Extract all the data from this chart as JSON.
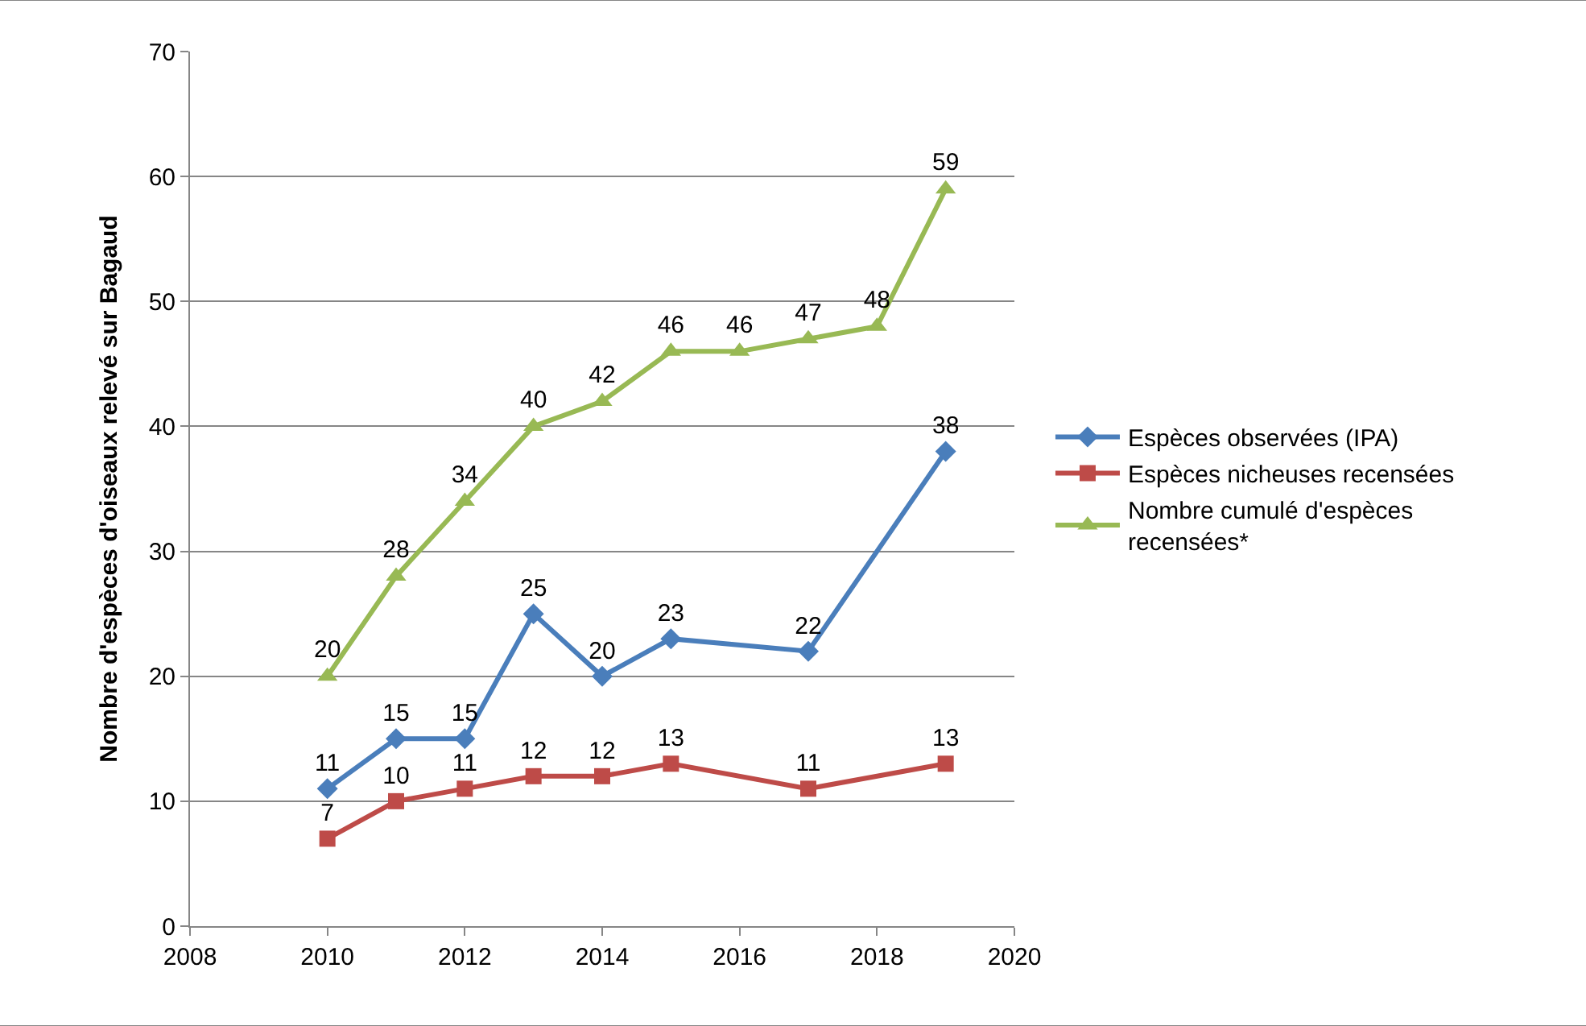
{
  "chart_data": {
    "type": "line",
    "ylabel": "Nombre d'espèces d'oiseaux relevé sur Bagaud",
    "xlim": [
      2008,
      2020
    ],
    "xticks": [
      2008,
      2010,
      2012,
      2014,
      2016,
      2018,
      2020
    ],
    "ylim": [
      0,
      70
    ],
    "yticks": [
      0,
      10,
      20,
      30,
      40,
      50,
      60,
      70
    ],
    "grid": "y",
    "legend": "right",
    "data_labels": true,
    "line_style": "solid",
    "series": [
      {
        "name": "Espèces observées (IPA)",
        "color": "#4a7ebb",
        "marker": "diamond",
        "x": [
          2010,
          2011,
          2012,
          2013,
          2014,
          2015,
          2017,
          2019
        ],
        "values": [
          11,
          15,
          15,
          25,
          20,
          23,
          22,
          38
        ]
      },
      {
        "name": "Espèces nicheuses recensées",
        "color": "#be4b48",
        "marker": "square",
        "x": [
          2010,
          2011,
          2012,
          2013,
          2014,
          2015,
          2017,
          2019
        ],
        "values": [
          7,
          10,
          11,
          12,
          12,
          13,
          11,
          13
        ]
      },
      {
        "name": "Nombre cumulé d'espèces\nrecensées*",
        "color": "#98b954",
        "marker": "triangle",
        "x": [
          2010,
          2011,
          2012,
          2013,
          2014,
          2015,
          2016,
          2017,
          2018,
          2019
        ],
        "values": [
          20,
          28,
          34,
          40,
          42,
          46,
          46,
          47,
          48,
          59
        ]
      }
    ]
  }
}
